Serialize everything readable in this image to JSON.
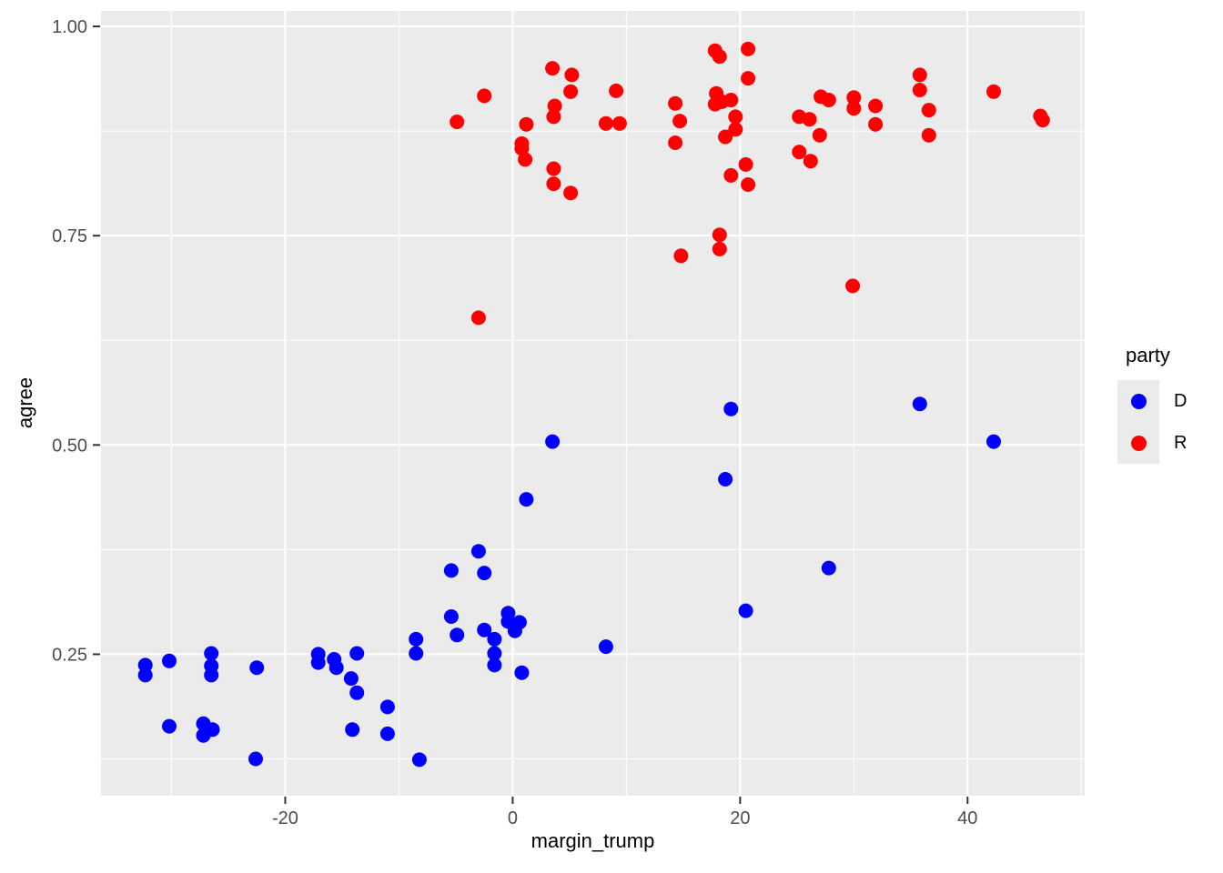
{
  "figure": {
    "background": "#ffffff",
    "panel_background": "#ebebeb",
    "grid_color": "#ffffff",
    "tick_mark_color": "#333333",
    "tick_text_color": "#4d4d4d"
  },
  "chart_data": {
    "type": "scatter",
    "title": "",
    "xlabel": "margin_trump",
    "ylabel": "agree",
    "xlim": [
      -36.2,
      50.3
    ],
    "ylim": [
      0.081,
      1.0185
    ],
    "grid": true,
    "x_axis": {
      "label": "margin_trump",
      "tick_values": [
        -20,
        0,
        20,
        40
      ],
      "tick_labels": [
        "-20",
        "0",
        "20",
        "40"
      ],
      "minor_values": [
        -30,
        -10,
        10,
        30,
        50
      ]
    },
    "y_axis": {
      "label": "agree",
      "tick_values": [
        0.25,
        0.5,
        0.75,
        1.0
      ],
      "tick_labels": [
        "0.25",
        "0.50",
        "0.75",
        "1.00"
      ],
      "minor_values": [
        0.125,
        0.375,
        0.625,
        0.875
      ]
    },
    "legend": {
      "title": "party",
      "position": "right",
      "entries": [
        {
          "label": "D",
          "color": "#0000ff"
        },
        {
          "label": "R",
          "color": "#ff0000"
        }
      ]
    },
    "point_radius": 8,
    "series": [
      {
        "name": "D",
        "color": "#0000ff",
        "points": [
          [
            -32.3,
            0.237
          ],
          [
            -32.3,
            0.225
          ],
          [
            -30.2,
            0.242
          ],
          [
            -30.2,
            0.164
          ],
          [
            -27.2,
            0.167
          ],
          [
            -27.2,
            0.153
          ],
          [
            -26.5,
            0.251
          ],
          [
            -26.5,
            0.236
          ],
          [
            -26.5,
            0.225
          ],
          [
            -26.4,
            0.16
          ],
          [
            -22.6,
            0.125
          ],
          [
            -22.5,
            0.234
          ],
          [
            -17.1,
            0.25
          ],
          [
            -17.1,
            0.24
          ],
          [
            -15.7,
            0.244
          ],
          [
            -15.5,
            0.234
          ],
          [
            -14.2,
            0.221
          ],
          [
            -14.1,
            0.16
          ],
          [
            -13.7,
            0.251
          ],
          [
            -13.7,
            0.204
          ],
          [
            -11.0,
            0.187
          ],
          [
            -11.0,
            0.155
          ],
          [
            -8.5,
            0.268
          ],
          [
            -8.5,
            0.251
          ],
          [
            -8.2,
            0.124
          ],
          [
            -5.4,
            0.35
          ],
          [
            -5.4,
            0.295
          ],
          [
            -4.9,
            0.273
          ],
          [
            -3.0,
            0.373
          ],
          [
            -2.5,
            0.347
          ],
          [
            -2.5,
            0.279
          ],
          [
            -1.6,
            0.268
          ],
          [
            -1.6,
            0.251
          ],
          [
            -1.6,
            0.237
          ],
          [
            -0.4,
            0.299
          ],
          [
            -0.4,
            0.289
          ],
          [
            0.2,
            0.278
          ],
          [
            0.6,
            0.288
          ],
          [
            0.8,
            0.228
          ],
          [
            1.2,
            0.435
          ],
          [
            3.5,
            0.504
          ],
          [
            8.2,
            0.259
          ],
          [
            18.7,
            0.459
          ],
          [
            19.2,
            0.543
          ],
          [
            20.5,
            0.302
          ],
          [
            27.8,
            0.353
          ],
          [
            35.8,
            0.549
          ],
          [
            42.3,
            0.504
          ]
        ]
      },
      {
        "name": "R",
        "color": "#ff0000",
        "points": [
          [
            -4.9,
            0.886
          ],
          [
            -3.0,
            0.652
          ],
          [
            -2.5,
            0.917
          ],
          [
            0.8,
            0.86
          ],
          [
            0.8,
            0.854
          ],
          [
            1.1,
            0.841
          ],
          [
            1.2,
            0.883
          ],
          [
            3.5,
            0.95
          ],
          [
            3.6,
            0.892
          ],
          [
            3.6,
            0.83
          ],
          [
            3.6,
            0.812
          ],
          [
            3.7,
            0.905
          ],
          [
            5.1,
            0.922
          ],
          [
            5.1,
            0.801
          ],
          [
            5.2,
            0.942
          ],
          [
            9.1,
            0.923
          ],
          [
            8.2,
            0.884
          ],
          [
            9.4,
            0.884
          ],
          [
            14.3,
            0.908
          ],
          [
            14.3,
            0.861
          ],
          [
            14.7,
            0.887
          ],
          [
            14.8,
            0.726
          ],
          [
            17.8,
            0.971
          ],
          [
            17.8,
            0.907
          ],
          [
            17.9,
            0.92
          ],
          [
            18.2,
            0.964
          ],
          [
            18.2,
            0.751
          ],
          [
            18.2,
            0.734
          ],
          [
            18.4,
            0.91
          ],
          [
            18.7,
            0.868
          ],
          [
            19.2,
            0.912
          ],
          [
            19.2,
            0.822
          ],
          [
            19.6,
            0.892
          ],
          [
            19.6,
            0.877
          ],
          [
            20.5,
            0.835
          ],
          [
            20.7,
            0.973
          ],
          [
            20.7,
            0.938
          ],
          [
            20.7,
            0.811
          ],
          [
            25.2,
            0.892
          ],
          [
            25.2,
            0.85
          ],
          [
            26.1,
            0.889
          ],
          [
            26.2,
            0.839
          ],
          [
            27.0,
            0.87
          ],
          [
            27.1,
            0.916
          ],
          [
            27.8,
            0.912
          ],
          [
            29.9,
            0.69
          ],
          [
            30.0,
            0.915
          ],
          [
            30.0,
            0.902
          ],
          [
            31.9,
            0.905
          ],
          [
            31.9,
            0.883
          ],
          [
            35.8,
            0.942
          ],
          [
            35.8,
            0.924
          ],
          [
            36.6,
            0.9
          ],
          [
            36.6,
            0.87
          ],
          [
            42.3,
            0.922
          ],
          [
            46.4,
            0.893
          ],
          [
            46.6,
            0.888
          ]
        ]
      }
    ]
  }
}
